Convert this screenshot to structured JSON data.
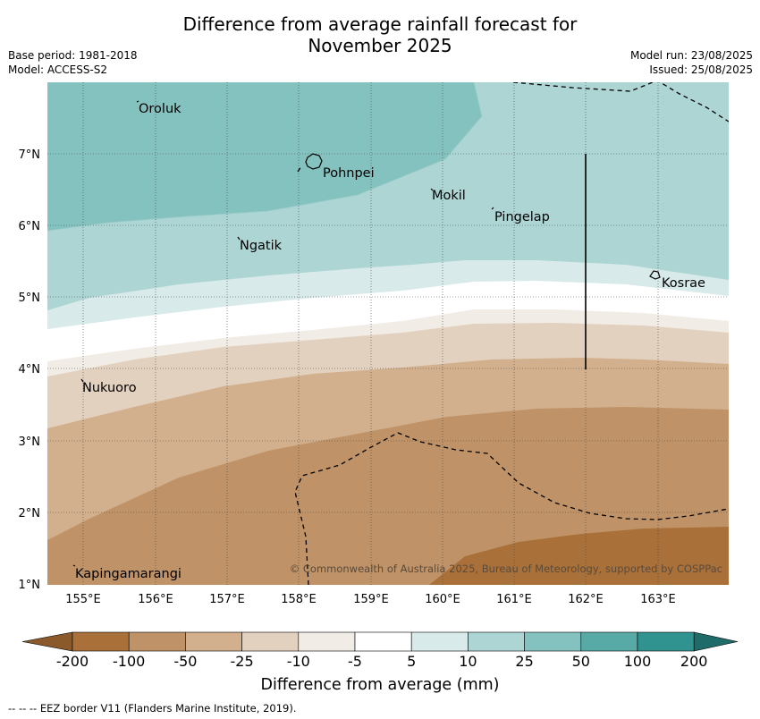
{
  "header": {
    "title_line1": "Difference from average rainfall forecast for",
    "title_line2": "November 2025",
    "base_period": "Base period: 1981-2018",
    "model": "Model: ACCESS-S2",
    "model_run": "Model run: 23/08/2025",
    "issued": "Issued: 25/08/2025"
  },
  "map": {
    "lon_labels": [
      "155°E",
      "156°E",
      "157°E",
      "158°E",
      "159°E",
      "160°E",
      "161°E",
      "162°E",
      "163°E"
    ],
    "lat_labels": [
      "7°N",
      "6°N",
      "5°N",
      "4°N",
      "3°N",
      "2°N",
      "1°N"
    ],
    "places": {
      "oroluk": "Oroluk",
      "pohnpei": "Pohnpei",
      "mokil": "Mokil",
      "pingelap": "Pingelap",
      "ngatik": "Ngatik",
      "kosrae": "Kosrae",
      "nukuoro": "Nukuoro",
      "kapingamarangi": "Kapingamarangi"
    },
    "copyright": "© Commonwealth of Australia 2025, Bureau of Meteorology, supported by COSPPac"
  },
  "colorbar": {
    "ticks": [
      "-200",
      "-100",
      "-50",
      "-25",
      "-10",
      "-5",
      "5",
      "10",
      "25",
      "50",
      "100",
      "200"
    ],
    "colors": {
      "lt_minus200": "#8a5a2b",
      "m200_m100": "#a97139",
      "m100_m50": "#bf9367",
      "m50_m25": "#d2b08d",
      "m25_m10": "#e3d1bf",
      "m10_m5": "#f1ece5",
      "m5_5": "#ffffff",
      "p5_10": "#d8eae9",
      "p10_25": "#acd5d4",
      "p25_50": "#84c2c0",
      "p50_100": "#57aaa6",
      "p100_200": "#31938f",
      "gt_200": "#1f6b69"
    },
    "label": "Difference from average (mm)"
  },
  "footnote": "-- -- -- EEZ border V11 (Flanders Marine Institute, 2019)."
}
